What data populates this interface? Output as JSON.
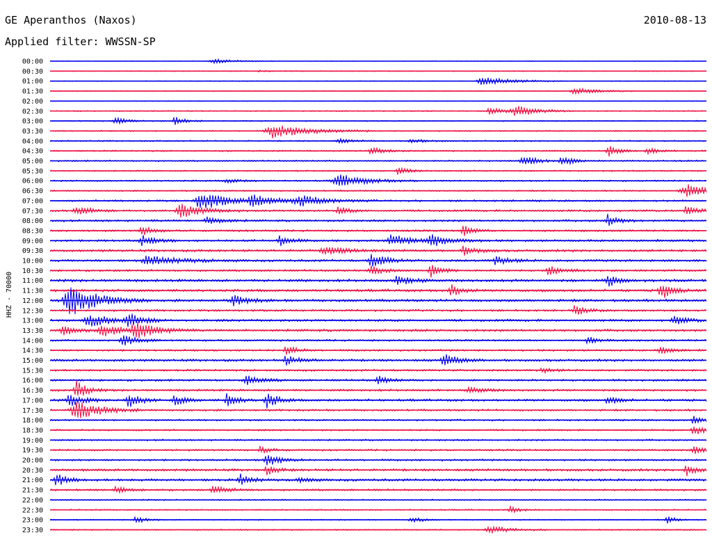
{
  "header": {
    "station": "GE Aperanthos (Naxos)",
    "date": "2010-08-13",
    "filter_text": "Applied filter: WWSSN-SP"
  },
  "channel_label": "HHZ - 70000",
  "colors": {
    "odd_trace": "#0000ee",
    "even_trace": "#ee1144"
  },
  "chart_data": {
    "type": "line",
    "title": "GE Aperanthos (Naxos)",
    "xlabel": "",
    "ylabel": "HHZ - 70000",
    "grid": false,
    "legend": "none",
    "row_labels": [
      "00:00",
      "00:30",
      "01:00",
      "01:30",
      "02:00",
      "02:30",
      "03:00",
      "03:30",
      "04:00",
      "04:30",
      "05:00",
      "05:30",
      "06:00",
      "06:30",
      "07:00",
      "07:30",
      "08:00",
      "08:30",
      "09:00",
      "09:30",
      "10:00",
      "10:30",
      "11:00",
      "11:30",
      "12:00",
      "12:30",
      "13:00",
      "13:30",
      "14:00",
      "14:30",
      "15:00",
      "15:30",
      "16:00",
      "16:30",
      "17:00",
      "17:30",
      "18:00",
      "18:30",
      "19:00",
      "19:30",
      "20:00",
      "20:30",
      "21:00",
      "21:30",
      "22:00",
      "22:30",
      "23:00",
      "23:30"
    ],
    "base_noise": [
      0.6,
      0.7,
      0.6,
      0.7,
      0.6,
      0.9,
      0.9,
      1.0,
      1.0,
      1.1,
      1.2,
      1.0,
      1.2,
      1.1,
      1.4,
      1.6,
      1.6,
      1.6,
      1.7,
      1.8,
      1.8,
      1.6,
      2.0,
      2.0,
      2.0,
      1.6,
      1.8,
      1.8,
      1.5,
      1.5,
      1.8,
      1.5,
      1.6,
      1.6,
      1.8,
      1.5,
      1.3,
      1.3,
      1.2,
      1.4,
      1.5,
      1.8,
      1.8,
      1.5,
      1.0,
      1.0,
      0.8,
      1.0
    ],
    "events": [
      [
        [
          0.25,
          3,
          0.03
        ]
      ],
      [
        [
          0.32,
          1,
          0.02
        ]
      ],
      [
        [
          0.66,
          6,
          0.04
        ]
      ],
      [
        [
          0.8,
          5,
          0.03
        ]
      ],
      [],
      [
        [
          0.67,
          6,
          0.02
        ],
        [
          0.71,
          8,
          0.03
        ]
      ],
      [
        [
          0.1,
          6,
          0.015
        ],
        [
          0.19,
          6,
          0.015
        ]
      ],
      [
        [
          0.34,
          10,
          0.05
        ]
      ],
      [
        [
          0.44,
          3,
          0.02
        ],
        [
          0.55,
          3,
          0.02
        ]
      ],
      [
        [
          0.49,
          5,
          0.02
        ],
        [
          0.85,
          8,
          0.015
        ],
        [
          0.91,
          5,
          0.015
        ]
      ],
      [
        [
          0.72,
          8,
          0.02
        ],
        [
          0.78,
          8,
          0.015
        ]
      ],
      [
        [
          0.53,
          6,
          0.015
        ]
      ],
      [
        [
          0.27,
          3,
          0.02
        ],
        [
          0.44,
          9,
          0.04
        ]
      ],
      [
        [
          0.97,
          10,
          0.04
        ]
      ],
      [
        [
          0.23,
          14,
          0.035
        ],
        [
          0.31,
          7,
          0.04
        ],
        [
          0.38,
          7,
          0.04
        ]
      ],
      [
        [
          0.04,
          7,
          0.02
        ],
        [
          0.2,
          10,
          0.03
        ],
        [
          0.44,
          6,
          0.015
        ],
        [
          0.97,
          9,
          0.015
        ]
      ],
      [
        [
          0.24,
          6,
          0.02
        ],
        [
          0.85,
          9,
          0.015
        ]
      ],
      [
        [
          0.14,
          7,
          0.015
        ],
        [
          0.63,
          7,
          0.015
        ]
      ],
      [
        [
          0.14,
          7,
          0.02
        ],
        [
          0.35,
          8,
          0.015
        ],
        [
          0.52,
          8,
          0.03
        ],
        [
          0.58,
          8,
          0.03
        ]
      ],
      [
        [
          0.42,
          6,
          0.03
        ],
        [
          0.63,
          6,
          0.02
        ]
      ],
      [
        [
          0.15,
          6,
          0.05
        ],
        [
          0.49,
          10,
          0.02
        ],
        [
          0.68,
          6,
          0.02
        ]
      ],
      [
        [
          0.49,
          6,
          0.02
        ],
        [
          0.58,
          10,
          0.015
        ],
        [
          0.76,
          6,
          0.02
        ]
      ],
      [
        [
          0.53,
          7,
          0.02
        ],
        [
          0.85,
          9,
          0.015
        ]
      ],
      [
        [
          0.61,
          9,
          0.015
        ],
        [
          0.93,
          14,
          0.015
        ]
      ],
      [
        [
          0.03,
          22,
          0.04
        ],
        [
          0.28,
          7,
          0.02
        ]
      ],
      [
        [
          0.8,
          7,
          0.015
        ]
      ],
      [
        [
          0.06,
          8,
          0.04
        ],
        [
          0.12,
          8,
          0.02
        ],
        [
          0.95,
          6,
          0.02
        ]
      ],
      [
        [
          0.02,
          8,
          0.02
        ],
        [
          0.08,
          8,
          0.03
        ],
        [
          0.13,
          12,
          0.03
        ]
      ],
      [
        [
          0.11,
          8,
          0.02
        ],
        [
          0.82,
          5,
          0.015
        ]
      ],
      [
        [
          0.36,
          7,
          0.015
        ],
        [
          0.93,
          6,
          0.015
        ]
      ],
      [
        [
          0.36,
          6,
          0.02
        ],
        [
          0.6,
          9,
          0.02
        ]
      ],
      [
        [
          0.75,
          4,
          0.015
        ]
      ],
      [
        [
          0.3,
          7,
          0.02
        ],
        [
          0.5,
          6,
          0.015
        ]
      ],
      [
        [
          0.04,
          14,
          0.015
        ],
        [
          0.64,
          5,
          0.02
        ]
      ],
      [
        [
          0.03,
          9,
          0.02
        ],
        [
          0.12,
          12,
          0.015
        ],
        [
          0.19,
          8,
          0.015
        ],
        [
          0.27,
          10,
          0.015
        ],
        [
          0.33,
          12,
          0.015
        ],
        [
          0.85,
          6,
          0.015
        ]
      ],
      [
        [
          0.04,
          14,
          0.035
        ]
      ],
      [
        [
          0.98,
          6,
          0.015
        ]
      ],
      [
        [
          0.98,
          8,
          0.015
        ]
      ],
      [],
      [
        [
          0.32,
          5,
          0.015
        ],
        [
          0.98,
          6,
          0.015
        ]
      ],
      [
        [
          0.33,
          10,
          0.02
        ]
      ],
      [
        [
          0.33,
          6,
          0.015
        ],
        [
          0.97,
          8,
          0.015
        ]
      ],
      [
        [
          0.01,
          9,
          0.015
        ],
        [
          0.29,
          8,
          0.015
        ],
        [
          0.38,
          5,
          0.015
        ]
      ],
      [
        [
          0.1,
          5,
          0.015
        ],
        [
          0.25,
          6,
          0.02
        ]
      ],
      [],
      [
        [
          0.7,
          5,
          0.015
        ]
      ],
      [
        [
          0.13,
          5,
          0.015
        ],
        [
          0.55,
          5,
          0.015
        ],
        [
          0.94,
          5,
          0.015
        ]
      ],
      [
        [
          0.67,
          5,
          0.03
        ]
      ]
    ]
  }
}
